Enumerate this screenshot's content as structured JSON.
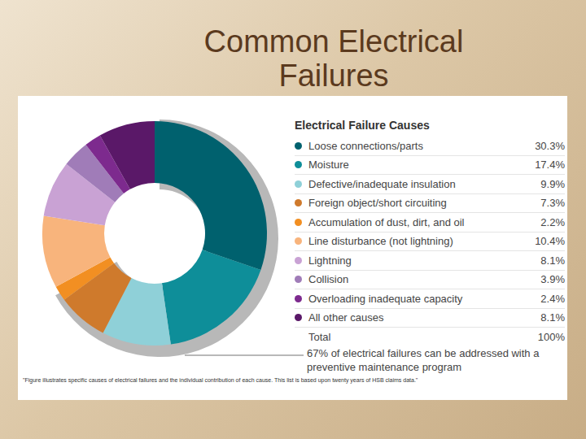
{
  "chart_data": {
    "type": "pie",
    "title": "Common Electrical Failures",
    "legend_title": "Electrical Failure Causes",
    "categories": [
      "Loose connections/parts",
      "Moisture",
      "Defective/inadequate insulation",
      "Foreign object/short circuiting",
      "Accumulation of dust, dirt, and oil",
      "Line disturbance (not lightning)",
      "Lightning",
      "Collision",
      "Overloading inadequate capacity",
      "All other causes"
    ],
    "values": [
      30.3,
      17.4,
      9.9,
      7.3,
      2.2,
      10.4,
      8.1,
      3.9,
      2.4,
      8.1
    ],
    "value_labels": [
      "30.3%",
      "17.4%",
      "9.9%",
      "7.3%",
      "2.2%",
      "10.4%",
      "8.1%",
      "3.9%",
      "2.4%",
      "8.1%"
    ],
    "colors": [
      "#00616e",
      "#0e8e99",
      "#8fd0d8",
      "#cf7a2c",
      "#f28f22",
      "#f8b47c",
      "#c9a2d4",
      "#a07cb8",
      "#7d2a8e",
      "#5a1868"
    ],
    "total": {
      "label": "Total",
      "value": 100,
      "value_label": "100%"
    },
    "annotation": {
      "text": "67% of electrical failures can be addressed with a preventive maintenance program",
      "value": 67
    },
    "footnote": "\"Figure illustrates specific causes of electrical failures and the individual contribution of each cause. This list is based upon twenty years of HSB claims data.\""
  }
}
